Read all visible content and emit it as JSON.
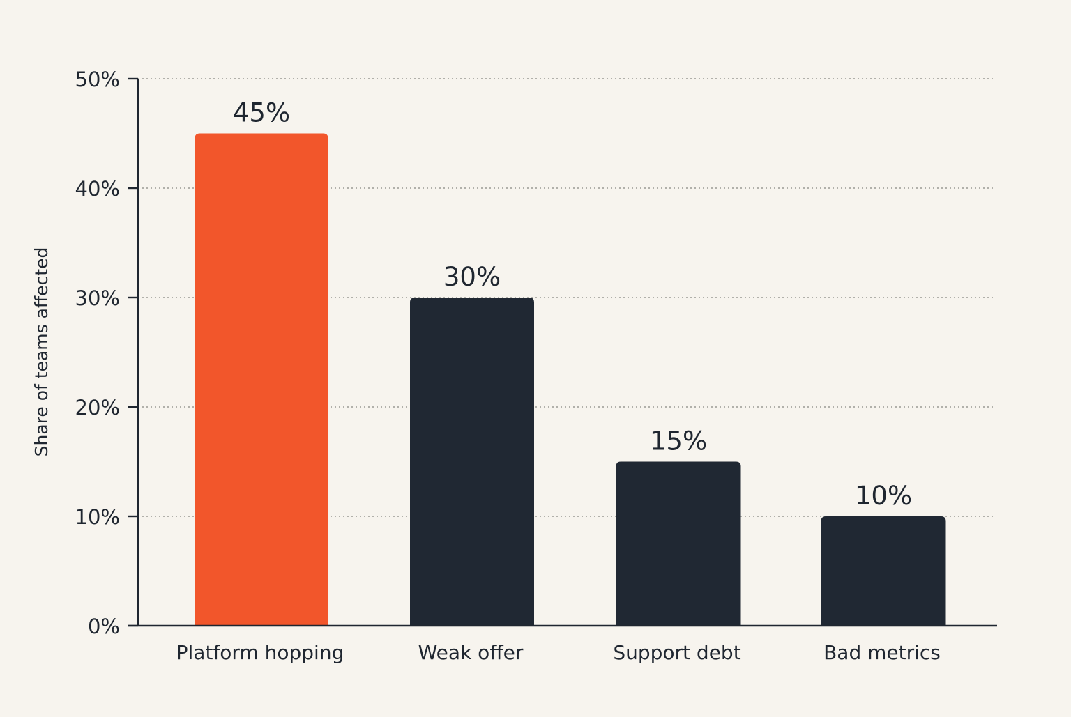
{
  "chart_data": {
    "type": "bar",
    "title": "",
    "xlabel": "",
    "ylabel": "Share of teams affected",
    "ylim": [
      0,
      50
    ],
    "yticks": [
      0,
      10,
      20,
      30,
      40,
      50
    ],
    "ytick_labels": [
      "0%",
      "10%",
      "20%",
      "30%",
      "40%",
      "50%"
    ],
    "grid": true,
    "legend": "none",
    "categories": [
      "Platform hopping",
      "Weak offer",
      "Support debt",
      "Bad metrics"
    ],
    "values": [
      45,
      30,
      15,
      10
    ],
    "value_labels": [
      "45%",
      "30%",
      "15%",
      "10%"
    ],
    "colors": [
      "#f2562b",
      "#202833",
      "#202833",
      "#202833"
    ],
    "axis_color": "#1f2630",
    "background": "#f7f4ee"
  }
}
